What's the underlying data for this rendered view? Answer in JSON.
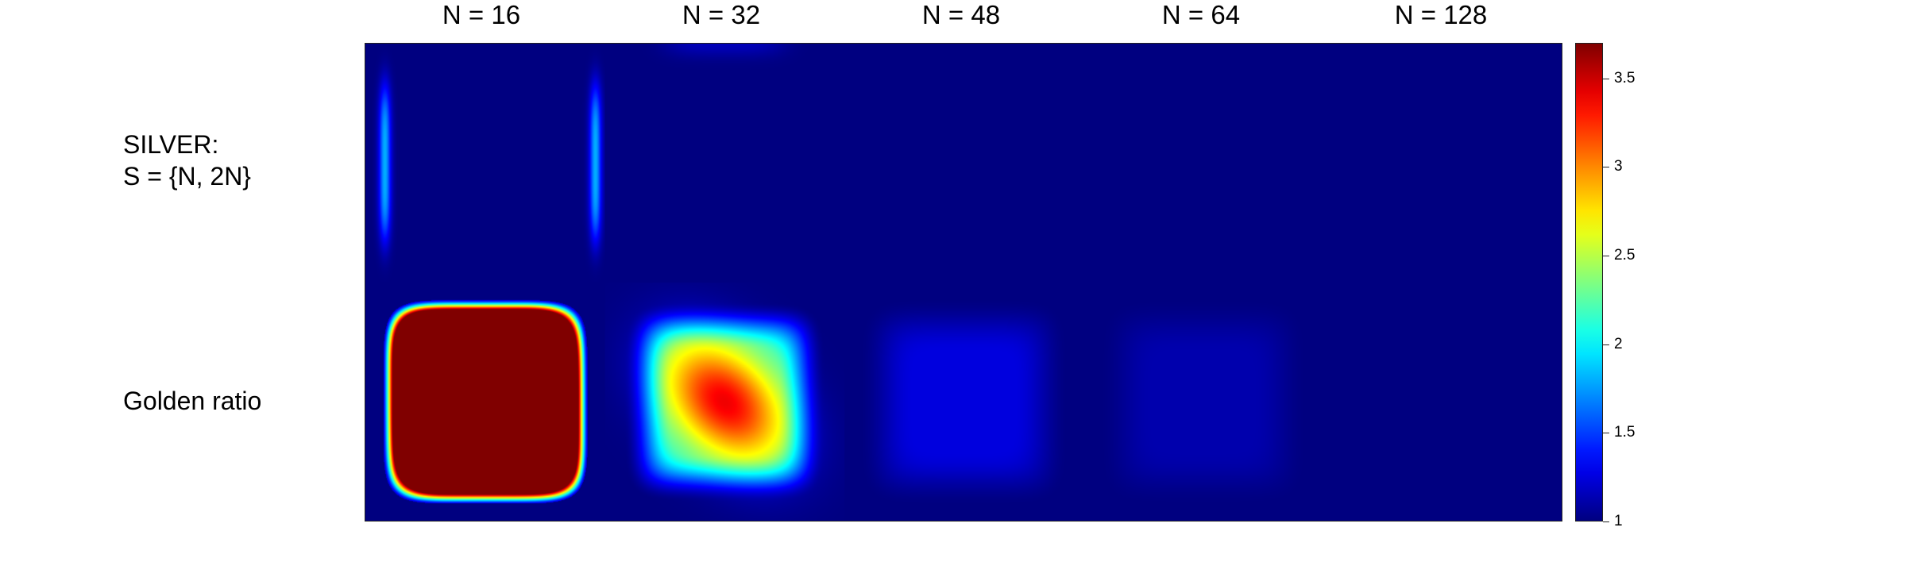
{
  "chart_data": {
    "type": "heatmap",
    "columns": [
      "N = 16",
      "N = 32",
      "N = 48",
      "N = 64",
      "N = 128"
    ],
    "rows": [
      {
        "line1": "SILVER:",
        "line2": "S = {N, 2N}"
      },
      {
        "line1": "Golden ratio",
        "line2": ""
      }
    ],
    "colormap": "jet",
    "colorbar": {
      "range": [
        1,
        3.7
      ],
      "ticks": [
        "1",
        "1.5",
        "2",
        "2.5",
        "3",
        "3.5"
      ],
      "tick_values": [
        1,
        1.5,
        2,
        2.5,
        3,
        3.5
      ]
    },
    "panels": [
      {
        "row": "SILVER:",
        "column": "N = 16",
        "background": 1.0,
        "peak": 1.8,
        "pattern": "vertical edge bands"
      },
      {
        "row": "SILVER:",
        "column": "N = 32",
        "background": 1.0,
        "peak": 1.15,
        "pattern": "near uniform"
      },
      {
        "row": "SILVER:",
        "column": "N = 48",
        "background": 1.0,
        "peak": 1.0,
        "pattern": "uniform"
      },
      {
        "row": "SILVER:",
        "column": "N = 64",
        "background": 1.0,
        "peak": 1.0,
        "pattern": "uniform"
      },
      {
        "row": "SILVER:",
        "column": "N = 128",
        "background": 1.0,
        "peak": 1.0,
        "pattern": "uniform"
      },
      {
        "row": "Golden ratio",
        "column": "N = 16",
        "background": 1.0,
        "peak": 3.7,
        "pattern": "large saturated diagonal blob"
      },
      {
        "row": "Golden ratio",
        "column": "N = 32",
        "background": 1.0,
        "peak": 3.4,
        "pattern": "diagonal blob"
      },
      {
        "row": "Golden ratio",
        "column": "N = 48",
        "background": 1.0,
        "peak": 1.25,
        "pattern": "faint square"
      },
      {
        "row": "Golden ratio",
        "column": "N = 64",
        "background": 1.0,
        "peak": 1.12,
        "pattern": "faint square"
      },
      {
        "row": "Golden ratio",
        "column": "N = 128",
        "background": 1.0,
        "peak": 1.0,
        "pattern": "uniform"
      }
    ]
  }
}
